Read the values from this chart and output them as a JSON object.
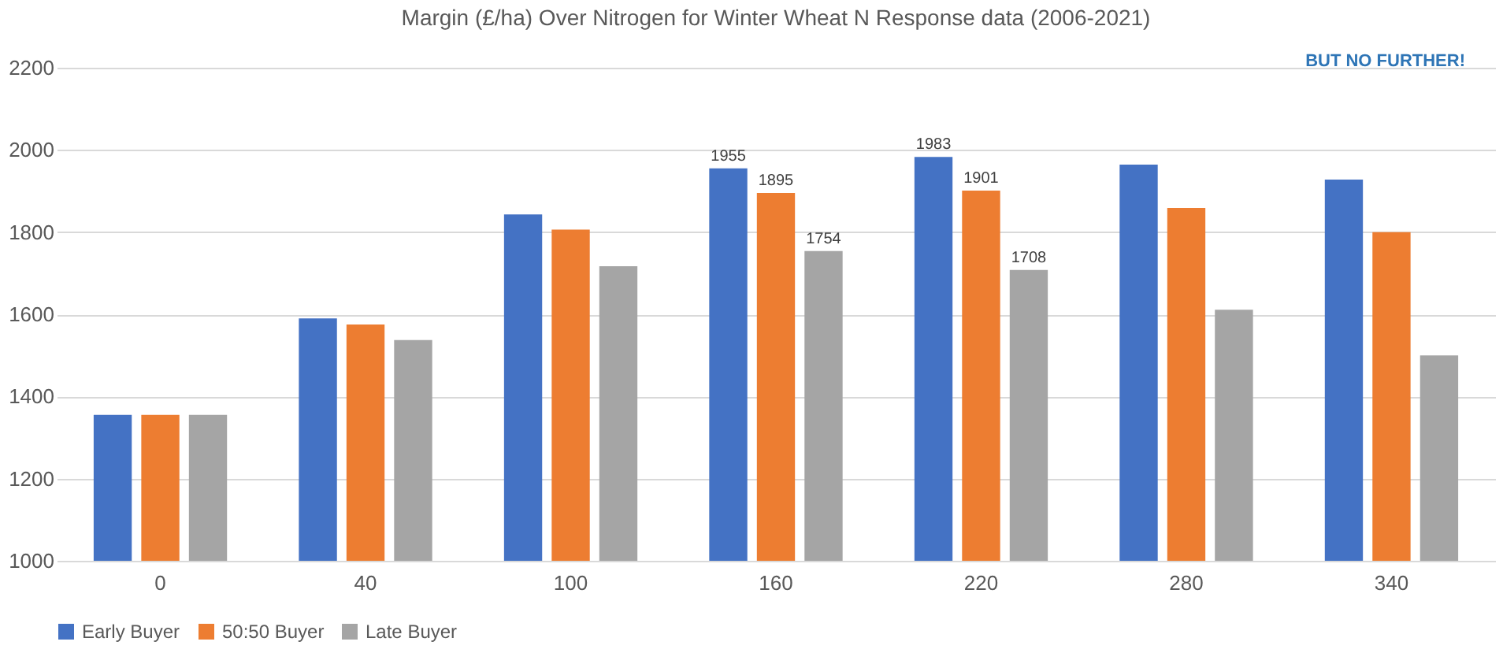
{
  "chart_data": {
    "type": "bar",
    "title": "Margin (£/ha) Over Nitrogen for Winter Wheat N Response data (2006-2021)",
    "categories": [
      "0",
      "40",
      "100",
      "160",
      "220",
      "280",
      "340"
    ],
    "series": [
      {
        "name": "Early Buyer",
        "color": "#4472c4",
        "values": [
          1355,
          1590,
          1843,
          1955,
          1983,
          1964,
          1928
        ],
        "value_labels": [
          null,
          null,
          null,
          "1955",
          "1983",
          null,
          null
        ]
      },
      {
        "name": "50:50 Buyer",
        "color": "#ed7d31",
        "values": [
          1355,
          1575,
          1806,
          1895,
          1901,
          1859,
          1800
        ],
        "value_labels": [
          null,
          null,
          null,
          "1895",
          "1901",
          null,
          null
        ]
      },
      {
        "name": "Late Buyer",
        "color": "#a5a5a5",
        "values": [
          1355,
          1537,
          1717,
          1754,
          1708,
          1611,
          1500
        ],
        "value_labels": [
          null,
          null,
          null,
          "1754",
          "1708",
          null,
          null
        ]
      }
    ],
    "ylim": [
      1000,
      2200
    ],
    "yticks": [
      1000,
      1200,
      1400,
      1600,
      1800,
      2000,
      2200
    ],
    "grid": "y",
    "legend": "bottom",
    "annotations": [
      "BUT NO FURTHER!"
    ]
  }
}
